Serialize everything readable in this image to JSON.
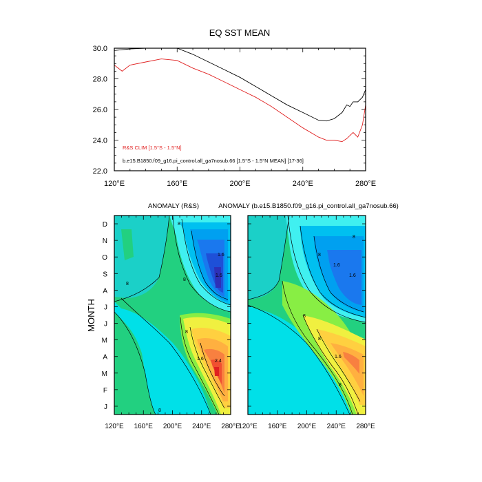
{
  "top": {
    "title": "EQ SST MEAN",
    "legend": {
      "obs": "R&S CLIM [1.5°S - 1.5°N]",
      "model": "b.e15.B1850.f09_g16.pi_control.all_ga7nosub.66 [1.5°S - 1.5°N MEAN] [17-36]"
    },
    "colors": {
      "obs": "#e02020",
      "model": "#000000"
    }
  },
  "bottom": {
    "ylabel": "MONTH",
    "left_title": "ANOMALY (R&S)",
    "right_title": "ANOMALY (b.e15.B1850.f09_g16.pi_control.all_ga7nosub.66)"
  },
  "chart_data": [
    {
      "type": "line",
      "title": "EQ SST MEAN",
      "xlim": [
        120,
        280
      ],
      "ylim": [
        22,
        30
      ],
      "xticks": [
        "120°E",
        "160°E",
        "200°E",
        "240°E",
        "280°E"
      ],
      "yticks": [
        "22.0",
        "24.0",
        "26.0",
        "28.0",
        "30.0"
      ],
      "x": [
        120,
        125,
        130,
        140,
        150,
        160,
        170,
        180,
        190,
        200,
        210,
        220,
        230,
        240,
        250,
        255,
        260,
        265,
        268,
        270,
        272,
        275,
        278,
        280
      ],
      "series": [
        {
          "name": "R&S CLIM [1.5°S - 1.5°N]",
          "values": [
            28.9,
            28.5,
            28.9,
            29.1,
            29.3,
            29.2,
            28.7,
            28.3,
            27.8,
            27.3,
            26.8,
            26.2,
            25.5,
            24.8,
            24.2,
            24.0,
            24.0,
            23.9,
            24.1,
            24.3,
            24.5,
            24.2,
            25.0,
            26.3
          ]
        },
        {
          "name": "b.e15.B1850.f09_g16.pi_control.all_ga7nosub.66 [1.5°S - 1.5°N MEAN] [17-36]",
          "values": [
            29.85,
            29.9,
            29.95,
            30.0,
            30.1,
            30.0,
            29.6,
            29.1,
            28.6,
            28.1,
            27.5,
            26.9,
            26.3,
            25.8,
            25.3,
            25.25,
            25.4,
            25.8,
            26.3,
            26.2,
            26.5,
            26.5,
            26.8,
            27.3
          ]
        }
      ]
    },
    {
      "type": "heatmap",
      "title": "ANOMALY (R&S)",
      "ylabel": "MONTH",
      "xlim": [
        120,
        280
      ],
      "xticks": [
        "120°E",
        "160°E",
        "200°E",
        "240°E",
        "280°E"
      ],
      "yticks": [
        "J",
        "F",
        "M",
        "A",
        "M",
        "J",
        "J",
        "A",
        "S",
        "O",
        "N",
        "D"
      ],
      "contour_labels": [
        "8",
        "8",
        "8",
        "1.6",
        "1.6",
        "2.4",
        "8",
        "1.6",
        "8"
      ]
    },
    {
      "type": "heatmap",
      "title": "ANOMALY (b.e15.B1850.f09_g16.pi_control.all_ga7nosub.66)",
      "xlim": [
        120,
        280
      ],
      "xticks": [
        "120°E",
        "160°E",
        "200°E",
        "240°E",
        "280°E"
      ],
      "contour_labels": [
        "8",
        "8",
        "1.6",
        "1.6",
        "8",
        "8",
        "1.6",
        "8"
      ]
    }
  ]
}
